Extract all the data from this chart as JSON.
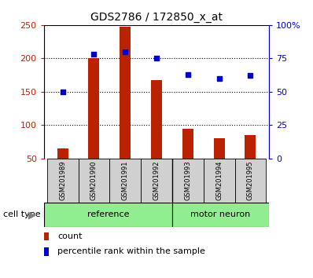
{
  "title": "GDS2786 / 172850_x_at",
  "samples": [
    "GSM201989",
    "GSM201990",
    "GSM201991",
    "GSM201992",
    "GSM201993",
    "GSM201994",
    "GSM201995"
  ],
  "counts": [
    65,
    200,
    248,
    167,
    95,
    80,
    85
  ],
  "percentile_ranks": [
    50,
    78,
    80,
    75,
    63,
    60,
    62
  ],
  "bar_color": "#bb2200",
  "dot_color": "#0000cc",
  "left_ylim": [
    50,
    250
  ],
  "right_ylim": [
    0,
    100
  ],
  "left_yticks": [
    50,
    100,
    150,
    200,
    250
  ],
  "right_yticks": [
    0,
    25,
    50,
    75,
    100
  ],
  "right_yticklabels": [
    "0",
    "25",
    "50",
    "75",
    "100%"
  ],
  "plot_bg": "#ffffff",
  "tick_bg": "#d0d0d0",
  "group_green": "#90ee90",
  "legend_count_label": "count",
  "legend_pct_label": "percentile rank within the sample",
  "ref_count": 4,
  "mn_count": 3,
  "cell_type_label": "cell type",
  "group1_name": "reference",
  "group2_name": "motor neuron"
}
